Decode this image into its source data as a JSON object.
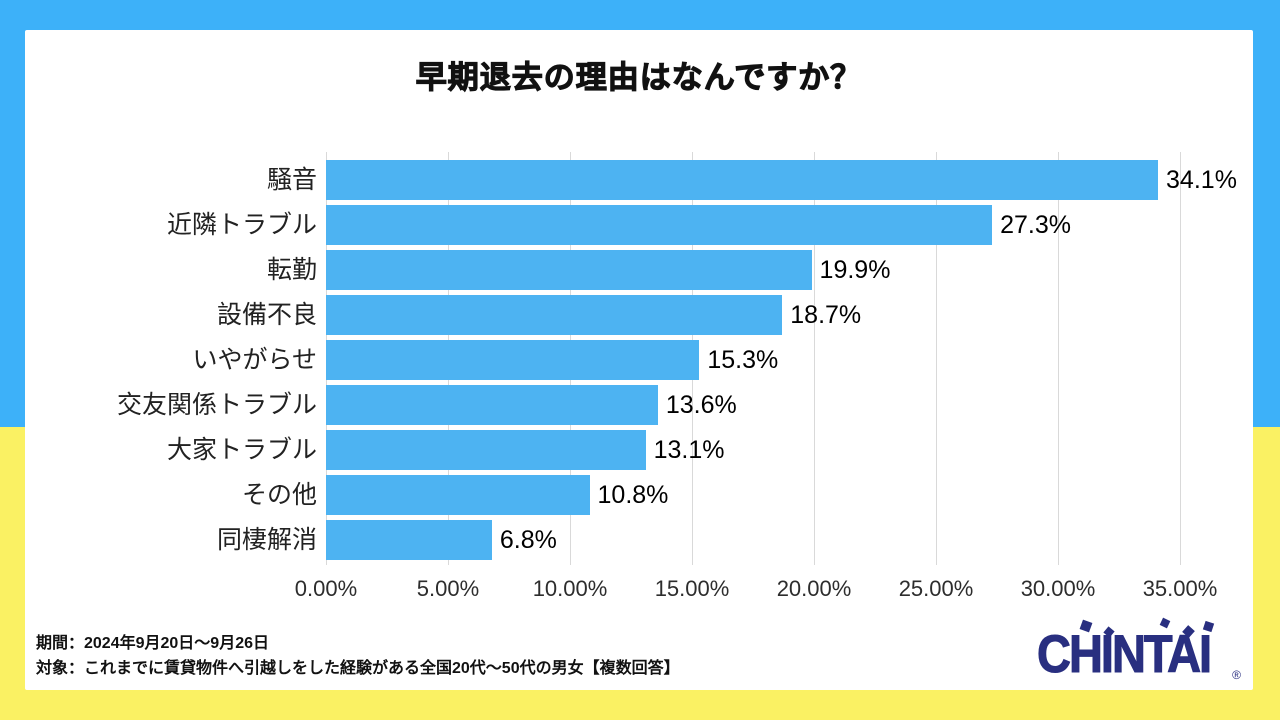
{
  "chart": {
    "title": "早期退去の理由はなんですか？"
  },
  "chart_data": {
    "type": "bar",
    "orientation": "horizontal",
    "title": "早期退去の理由はなんですか？",
    "categories": [
      "騒音",
      "近隣トラブル",
      "転勤",
      "設備不良",
      "いやがらせ",
      "交友関係トラブル",
      "大家トラブル",
      "その他",
      "同棲解消"
    ],
    "values": [
      34.1,
      27.3,
      19.9,
      18.7,
      15.3,
      13.6,
      13.1,
      10.8,
      6.8
    ],
    "value_labels": [
      "34.1%",
      "27.3%",
      "19.9%",
      "18.7%",
      "15.3%",
      "13.6%",
      "13.1%",
      "10.8%",
      "6.8%"
    ],
    "xlabel": "",
    "ylabel": "",
    "xlim": [
      0,
      35
    ],
    "x_ticks": [
      "0.00%",
      "5.00%",
      "10.00%",
      "15.00%",
      "20.00%",
      "25.00%",
      "30.00%",
      "35.00%"
    ],
    "grid": true,
    "legend": "none"
  },
  "footer": {
    "period": "期間：2024年9月20日～9月26日",
    "target": "対象：これまでに賃貸物件へ引越しをした経験がある全国20代～50代の男女【複数回答】"
  },
  "logo": {
    "text": "CHINTAI",
    "registered": "®"
  },
  "colors": {
    "background_top": "#3DB1F9",
    "background_bottom": "#FAF163",
    "bar": "#4DB3F2",
    "gridline": "#D9D9D9",
    "logo_navy": "#292F80",
    "title_text": "#111111"
  }
}
